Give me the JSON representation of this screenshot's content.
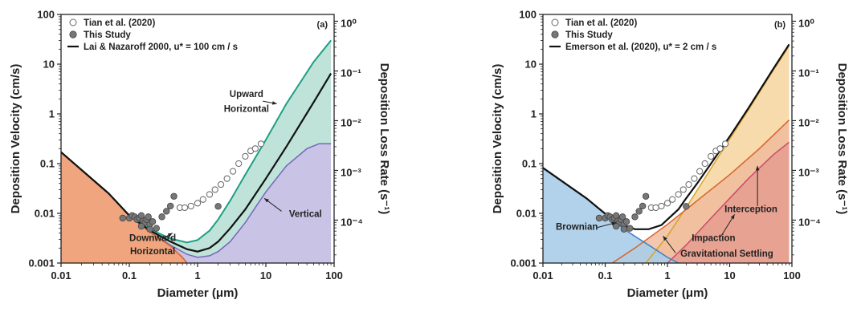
{
  "chart_data": [
    {
      "type": "line",
      "panel_label": "(a)",
      "xlabel": "Diameter (μm)",
      "ylabel": "Deposition Velocity (cm/s)",
      "y2label": "Deposition Loss Rate (s⁻¹)",
      "xscale": "log",
      "yscale": "log",
      "xlim": [
        0.01,
        100
      ],
      "ylim": [
        0.001,
        100
      ],
      "y2lim": [
        1.37e-05,
        1.37
      ],
      "x_ticks": [
        "0.01",
        "0.1",
        "1",
        "10",
        "100"
      ],
      "y_ticks": [
        "0.001",
        "0.01",
        "0.1",
        "1",
        "10",
        "100"
      ],
      "y2_ticks": [
        "10⁻⁴",
        "10⁻³",
        "10⁻²",
        "10⁻¹",
        "10⁰"
      ],
      "legend": [
        {
          "label": "Tian et al. (2020)",
          "marker": "open-circle"
        },
        {
          "label": "This Study",
          "marker": "filled-circle"
        },
        {
          "label": "Lai & Nazaroff 2000, u* = 100 cm / s",
          "marker": "line"
        }
      ],
      "legend_placement": "top-left",
      "series": [
        {
          "name": "Upward Horizontal",
          "kind": "line",
          "color": "#1f9e83",
          "x": [
            0.01,
            0.05,
            0.1,
            0.2,
            0.4,
            0.7,
            1,
            1.5,
            2,
            3,
            5,
            10,
            20,
            50,
            90
          ],
          "y": [
            0.17,
            0.025,
            0.009,
            0.0048,
            0.0031,
            0.0026,
            0.0029,
            0.0045,
            0.0075,
            0.018,
            0.06,
            0.3,
            1.6,
            11,
            30
          ]
        },
        {
          "name": "Lai & Nazaroff 2000, u* = 100 cm / s",
          "kind": "line",
          "color": "#111111",
          "x": [
            0.01,
            0.05,
            0.1,
            0.2,
            0.4,
            0.7,
            1,
            1.5,
            2,
            3,
            5,
            10,
            20,
            50,
            90
          ],
          "y": [
            0.17,
            0.025,
            0.009,
            0.0045,
            0.0027,
            0.0019,
            0.0017,
            0.002,
            0.0027,
            0.005,
            0.012,
            0.05,
            0.22,
            1.7,
            6.5
          ]
        },
        {
          "name": "Vertical",
          "kind": "line",
          "color": "#7766bb",
          "x": [
            0.01,
            0.05,
            0.1,
            0.2,
            0.4,
            0.7,
            1,
            1.5,
            2,
            3,
            5,
            7,
            10,
            20,
            40,
            60,
            90
          ],
          "y": [
            0.17,
            0.025,
            0.009,
            0.0042,
            0.0023,
            0.0015,
            0.0013,
            0.0014,
            0.0017,
            0.0027,
            0.0065,
            0.013,
            0.027,
            0.09,
            0.2,
            0.25,
            0.25
          ]
        },
        {
          "name": "Downward Horizontal",
          "kind": "line",
          "color": "#d9622b",
          "x": [
            0.01,
            0.05,
            0.1,
            0.2,
            0.4,
            0.6,
            0.7
          ],
          "y": [
            0.17,
            0.025,
            0.009,
            0.0042,
            0.0022,
            0.0013,
            0.001
          ]
        },
        {
          "name": "Tian et al. (2020)",
          "kind": "scatter",
          "marker": "open-circle",
          "x": [
            0.55,
            0.65,
            0.8,
            1.0,
            1.2,
            1.5,
            1.8,
            2.2,
            2.7,
            3.3,
            4,
            5,
            6,
            7,
            8.5
          ],
          "y": [
            0.013,
            0.013,
            0.014,
            0.016,
            0.019,
            0.024,
            0.03,
            0.038,
            0.05,
            0.07,
            0.1,
            0.14,
            0.18,
            0.2,
            0.25
          ]
        },
        {
          "name": "This Study",
          "kind": "scatter",
          "marker": "filled-circle",
          "x": [
            0.08,
            0.1,
            0.11,
            0.12,
            0.13,
            0.14,
            0.15,
            0.16,
            0.17,
            0.18,
            0.19,
            0.2,
            0.22,
            0.25,
            0.3,
            0.35,
            0.4,
            0.45,
            0.15,
            0.2,
            2.0
          ],
          "y": [
            0.008,
            0.008,
            0.009,
            0.0085,
            0.0075,
            0.008,
            0.009,
            0.007,
            0.0065,
            0.0075,
            0.0085,
            0.006,
            0.0068,
            0.005,
            0.0085,
            0.011,
            0.014,
            0.022,
            0.0055,
            0.0048,
            0.0138
          ]
        }
      ],
      "annotations": [
        "Upward",
        "Horizontal",
        "Vertical",
        "Downward",
        "Horizontal"
      ],
      "grid": false
    },
    {
      "type": "line",
      "panel_label": "(b)",
      "xlabel": "Diameter (μm)",
      "ylabel": "Deposition Velocity (cm/s)",
      "y2label": "Deposition Loss Rate (s⁻¹)",
      "xscale": "log",
      "yscale": "log",
      "xlim": [
        0.01,
        100
      ],
      "ylim": [
        0.001,
        100
      ],
      "y2lim": [
        1.37e-05,
        1.37
      ],
      "x_ticks": [
        "0.01",
        "0.1",
        "1",
        "10",
        "100"
      ],
      "y_ticks": [
        "0.001",
        "0.01",
        "0.1",
        "1",
        "10",
        "100"
      ],
      "y2_ticks": [
        "10⁻⁴",
        "10⁻³",
        "10⁻²",
        "10⁻¹",
        "10⁰"
      ],
      "legend": [
        {
          "label": "Tian et al. (2020)",
          "marker": "open-circle"
        },
        {
          "label": "This Study",
          "marker": "filled-circle"
        },
        {
          "label": "Emerson et al. (2020), u* = 2 cm / s",
          "marker": "line"
        }
      ],
      "legend_placement": "top-left",
      "series": [
        {
          "name": "Brownian",
          "kind": "line",
          "color": "#3b7fc4",
          "x": [
            0.01,
            0.05,
            0.1,
            0.2,
            0.5,
            1,
            1.5
          ],
          "y": [
            0.082,
            0.02,
            0.0096,
            0.0048,
            0.0023,
            0.0013,
            0.001
          ]
        },
        {
          "name": "Gravitational Settling",
          "kind": "line",
          "color": "#d9a227",
          "x": [
            0.45,
            1,
            2,
            5,
            10,
            20,
            50,
            90
          ],
          "y": [
            0.001,
            0.0035,
            0.013,
            0.08,
            0.31,
            1.2,
            7.5,
            23
          ]
        },
        {
          "name": "Interception",
          "kind": "line",
          "color": "#d9622b",
          "x": [
            0.13,
            0.3,
            1,
            3,
            10,
            30,
            90
          ],
          "y": [
            0.001,
            0.002,
            0.006,
            0.018,
            0.06,
            0.2,
            0.75
          ]
        },
        {
          "name": "Impaction",
          "kind": "line",
          "color": "#cc4b6b",
          "x": [
            1.0,
            2,
            5,
            10,
            20,
            50,
            90
          ],
          "y": [
            0.001,
            0.0023,
            0.008,
            0.02,
            0.05,
            0.15,
            0.27
          ]
        },
        {
          "name": "Emerson et al. (2020), u* = 2 cm / s",
          "kind": "line",
          "color": "#111111",
          "x": [
            0.01,
            0.05,
            0.1,
            0.2,
            0.3,
            0.5,
            0.8,
            1,
            1.5,
            2,
            3,
            5,
            10,
            20,
            50,
            90
          ],
          "y": [
            0.082,
            0.02,
            0.0098,
            0.0058,
            0.0048,
            0.0048,
            0.0058,
            0.0075,
            0.012,
            0.02,
            0.04,
            0.1,
            0.35,
            1.3,
            8,
            25
          ]
        },
        {
          "name": "Tian et al. (2020)",
          "kind": "scatter",
          "marker": "open-circle",
          "x": [
            0.55,
            0.65,
            0.8,
            1.0,
            1.2,
            1.5,
            1.8,
            2.2,
            2.7,
            3.3,
            4,
            5,
            6,
            7,
            8.5
          ],
          "y": [
            0.013,
            0.013,
            0.014,
            0.016,
            0.019,
            0.024,
            0.03,
            0.038,
            0.05,
            0.07,
            0.1,
            0.14,
            0.18,
            0.2,
            0.25
          ]
        },
        {
          "name": "This Study",
          "kind": "scatter",
          "marker": "filled-circle",
          "x": [
            0.08,
            0.1,
            0.11,
            0.12,
            0.13,
            0.14,
            0.15,
            0.16,
            0.17,
            0.18,
            0.19,
            0.2,
            0.22,
            0.25,
            0.3,
            0.35,
            0.4,
            0.45,
            0.15,
            0.2,
            2.0
          ],
          "y": [
            0.008,
            0.008,
            0.009,
            0.0085,
            0.0075,
            0.008,
            0.009,
            0.007,
            0.0065,
            0.0075,
            0.0085,
            0.006,
            0.0068,
            0.005,
            0.0085,
            0.011,
            0.014,
            0.022,
            0.0055,
            0.0048,
            0.0138
          ]
        }
      ],
      "annotations": [
        "Brownian",
        "Impaction",
        "Gravitational Settling",
        "Interception"
      ],
      "grid": false
    }
  ],
  "colors": {
    "fill_downward": "#f0a57e",
    "fill_vertical": "#c9c3e6",
    "fill_upward": "#bfe3d9",
    "fill_brownian": "#a9cde8",
    "fill_gravitational": "#f6d7a4",
    "fill_interception": "#efb99a",
    "fill_impaction": "#e59a8e"
  }
}
